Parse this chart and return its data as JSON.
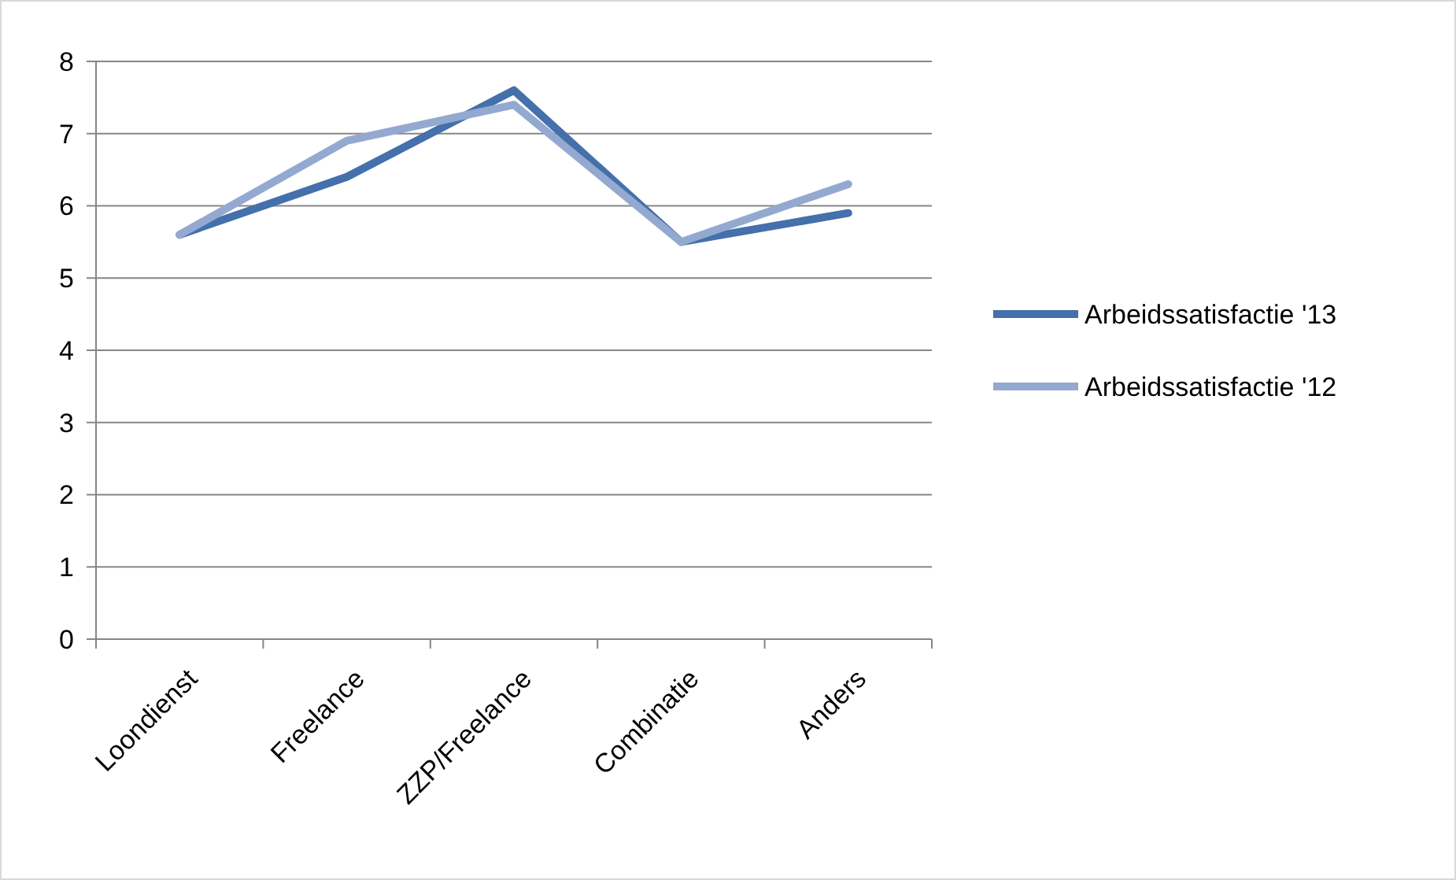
{
  "chart_data": {
    "type": "line",
    "categories": [
      "Loondienst",
      "Freelance",
      "ZZP/Freelance",
      "Combinatie",
      "Anders"
    ],
    "series": [
      {
        "name": "Arbeidssatisfactie '13",
        "color": "#4470ab",
        "values": [
          5.6,
          6.4,
          7.6,
          5.5,
          5.9
        ]
      },
      {
        "name": "Arbeidssatisfactie '12",
        "color": "#93a9d0",
        "values": [
          5.6,
          6.9,
          7.4,
          5.5,
          6.3
        ]
      }
    ],
    "ylim": [
      0,
      8
    ],
    "yticks": [
      0,
      1,
      2,
      3,
      4,
      5,
      6,
      7,
      8
    ],
    "grid": "y",
    "legend": "right",
    "marker": "none",
    "line_style": "solid"
  }
}
